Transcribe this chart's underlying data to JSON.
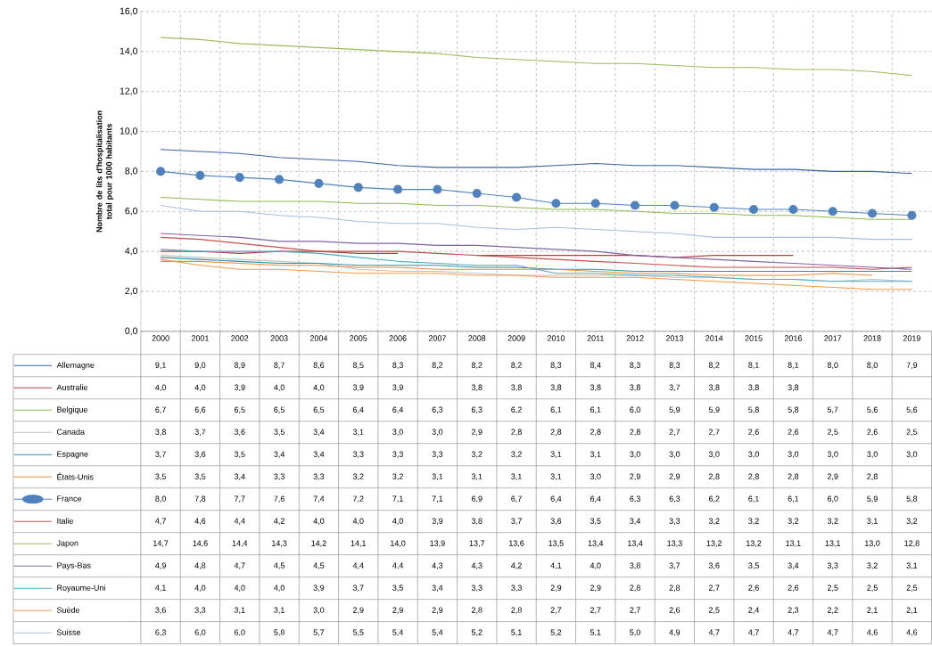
{
  "chart_data": {
    "type": "line",
    "ylabel": "Nombre  de lits d'hospitalisation total pour 1000 habitants",
    "categories": [
      "2000",
      "2001",
      "2002",
      "2003",
      "2004",
      "2005",
      "2006",
      "2007",
      "2008",
      "2009",
      "2010",
      "2011",
      "2012",
      "2013",
      "2014",
      "2015",
      "2016",
      "2017",
      "2018",
      "2019"
    ],
    "ylim": [
      0,
      16
    ],
    "yticks": [
      {
        "value": 0,
        "label": "0,0"
      },
      {
        "value": 2,
        "label": "2,0"
      },
      {
        "value": 4,
        "label": "4,0"
      },
      {
        "value": 6,
        "label": "6,0"
      },
      {
        "value": 8,
        "label": "8,0"
      },
      {
        "value": 10,
        "label": "10,0"
      },
      {
        "value": 12,
        "label": "12,0"
      },
      {
        "value": 14,
        "label": "14,0"
      },
      {
        "value": 16,
        "label": "16,0"
      }
    ],
    "grid": true,
    "legend": "bottom left",
    "line_style": "solid",
    "marker": "none",
    "series": [
      {
        "name": "Allemagne",
        "color": "#3a63a0",
        "values": [
          9.1,
          9.0,
          8.9,
          8.7,
          8.6,
          8.5,
          8.3,
          8.2,
          8.2,
          8.2,
          8.3,
          8.4,
          8.3,
          8.3,
          8.2,
          8.1,
          8.1,
          8.0,
          8.0,
          7.9
        ],
        "value_labels": [
          "9,1",
          "9,0",
          "8,9",
          "8,7",
          "8,6",
          "8,5",
          "8,3",
          "8,2",
          "8,2",
          "8,2",
          "8,3",
          "8,4",
          "8,3",
          "8,3",
          "8,2",
          "8,1",
          "8,1",
          "8,0",
          "8,0",
          "7,9"
        ]
      },
      {
        "name": "Australie",
        "color": "#b2403e",
        "values": [
          4.0,
          4.0,
          3.9,
          4.0,
          4.0,
          3.9,
          3.9,
          null,
          3.8,
          3.8,
          3.8,
          3.8,
          3.8,
          3.7,
          3.8,
          3.8,
          3.8,
          null,
          null,
          null
        ],
        "value_labels": [
          "4,0",
          "4,0",
          "3,9",
          "4,0",
          "4,0",
          "3,9",
          "3,9",
          null,
          "3,8",
          "3,8",
          "3,8",
          "3,8",
          "3,8",
          "3,7",
          "3,8",
          "3,8",
          "3,8",
          null,
          null,
          null
        ]
      },
      {
        "name": "Belgique",
        "color": "#8fb84c",
        "values": [
          6.7,
          6.6,
          6.5,
          6.5,
          6.5,
          6.4,
          6.4,
          6.3,
          6.3,
          6.2,
          6.1,
          6.1,
          6.0,
          5.9,
          5.9,
          5.8,
          5.8,
          5.7,
          5.6,
          5.6
        ],
        "value_labels": [
          "6,7",
          "6,6",
          "6,5",
          "6,5",
          "6,5",
          "6,4",
          "6,4",
          "6,3",
          "6,3",
          "6,2",
          "6,1",
          "6,1",
          "6,0",
          "5,9",
          "5,9",
          "5,8",
          "5,8",
          "5,7",
          "5,6",
          "5,6"
        ]
      },
      {
        "name": "Canada",
        "color": "#bfbfbf",
        "values": [
          3.8,
          3.7,
          3.6,
          3.5,
          3.4,
          3.1,
          3.0,
          3.0,
          2.9,
          2.8,
          2.8,
          2.8,
          2.8,
          2.7,
          2.7,
          2.6,
          2.6,
          2.5,
          2.6,
          2.5
        ],
        "value_labels": [
          "3,8",
          "3,7",
          "3,6",
          "3,5",
          "3,4",
          "3,1",
          "3,0",
          "3,0",
          "2,9",
          "2,8",
          "2,8",
          "2,8",
          "2,8",
          "2,7",
          "2,7",
          "2,6",
          "2,6",
          "2,5",
          "2,6",
          "2,5"
        ]
      },
      {
        "name": "Espagne",
        "color": "#2e8fa8",
        "values": [
          3.7,
          3.6,
          3.5,
          3.4,
          3.4,
          3.3,
          3.3,
          3.3,
          3.2,
          3.2,
          3.1,
          3.1,
          3.0,
          3.0,
          3.0,
          3.0,
          3.0,
          3.0,
          3.0,
          3.0
        ],
        "value_labels": [
          "3,7",
          "3,6",
          "3,5",
          "3,4",
          "3,4",
          "3,3",
          "3,3",
          "3,3",
          "3,2",
          "3,2",
          "3,1",
          "3,1",
          "3,0",
          "3,0",
          "3,0",
          "3,0",
          "3,0",
          "3,0",
          "3,0",
          "3,0"
        ]
      },
      {
        "name": "États-Unis",
        "color": "#ed8a38",
        "values": [
          3.5,
          3.5,
          3.4,
          3.3,
          3.3,
          3.2,
          3.2,
          3.1,
          3.1,
          3.1,
          3.1,
          3.0,
          2.9,
          2.9,
          2.8,
          2.8,
          2.8,
          2.9,
          2.8,
          null
        ],
        "value_labels": [
          "3,5",
          "3,5",
          "3,4",
          "3,3",
          "3,3",
          "3,2",
          "3,2",
          "3,1",
          "3,1",
          "3,1",
          "3,1",
          "3,0",
          "2,9",
          "2,9",
          "2,8",
          "2,8",
          "2,8",
          "2,9",
          "2,8",
          null
        ]
      },
      {
        "name": "France",
        "color": "#4f81bd",
        "marker": "circle",
        "values": [
          8.0,
          7.8,
          7.7,
          7.6,
          7.4,
          7.2,
          7.1,
          7.1,
          6.9,
          6.7,
          6.4,
          6.4,
          6.3,
          6.3,
          6.2,
          6.1,
          6.1,
          6.0,
          5.9,
          5.8
        ],
        "value_labels": [
          "8,0",
          "7,8",
          "7,7",
          "7,6",
          "7,4",
          "7,2",
          "7,1",
          "7,1",
          "6,9",
          "6,7",
          "6,4",
          "6,4",
          "6,3",
          "6,3",
          "6,2",
          "6,1",
          "6,1",
          "6,0",
          "5,9",
          "5,8"
        ]
      },
      {
        "name": "Italie",
        "color": "#c0504d",
        "values": [
          4.7,
          4.6,
          4.4,
          4.2,
          4.0,
          4.0,
          4.0,
          3.9,
          3.8,
          3.7,
          3.6,
          3.5,
          3.4,
          3.3,
          3.2,
          3.2,
          3.2,
          3.2,
          3.1,
          3.2
        ],
        "value_labels": [
          "4,7",
          "4,6",
          "4,4",
          "4,2",
          "4,0",
          "4,0",
          "4,0",
          "3,9",
          "3,8",
          "3,7",
          "3,6",
          "3,5",
          "3,4",
          "3,3",
          "3,2",
          "3,2",
          "3,2",
          "3,2",
          "3,1",
          "3,2"
        ]
      },
      {
        "name": "Japon",
        "color": "#9bbb59",
        "values": [
          14.7,
          14.6,
          14.4,
          14.3,
          14.2,
          14.1,
          14.0,
          13.9,
          13.7,
          13.6,
          13.5,
          13.4,
          13.4,
          13.3,
          13.2,
          13.2,
          13.1,
          13.1,
          13.0,
          12.8
        ],
        "value_labels": [
          "14,7",
          "14,6",
          "14,4",
          "14,3",
          "14,2",
          "14,1",
          "14,0",
          "13,9",
          "13,7",
          "13,6",
          "13,5",
          "13,4",
          "13,4",
          "13,3",
          "13,2",
          "13,2",
          "13,1",
          "13,1",
          "13,0",
          "12,8"
        ]
      },
      {
        "name": "Pays-Bas",
        "color": "#8064a2",
        "values": [
          4.9,
          4.8,
          4.7,
          4.5,
          4.5,
          4.4,
          4.4,
          4.3,
          4.3,
          4.2,
          4.1,
          4.0,
          3.8,
          3.7,
          3.6,
          3.5,
          3.4,
          3.3,
          3.2,
          3.1
        ],
        "value_labels": [
          "4,9",
          "4,8",
          "4,7",
          "4,5",
          "4,5",
          "4,4",
          "4,4",
          "4,3",
          "4,3",
          "4,2",
          "4,1",
          "4,0",
          "3,8",
          "3,7",
          "3,6",
          "3,5",
          "3,4",
          "3,3",
          "3,2",
          "3,1"
        ]
      },
      {
        "name": "Royaume-Uni",
        "color": "#4bacc6",
        "values": [
          4.1,
          4.0,
          4.0,
          4.0,
          3.9,
          3.7,
          3.5,
          3.4,
          3.3,
          3.3,
          2.9,
          2.9,
          2.8,
          2.8,
          2.7,
          2.6,
          2.6,
          2.5,
          2.5,
          2.5
        ],
        "value_labels": [
          "4,1",
          "4,0",
          "4,0",
          "4,0",
          "3,9",
          "3,7",
          "3,5",
          "3,4",
          "3,3",
          "3,3",
          "2,9",
          "2,9",
          "2,8",
          "2,8",
          "2,7",
          "2,6",
          "2,6",
          "2,5",
          "2,5",
          "2,5"
        ]
      },
      {
        "name": "Suède",
        "color": "#f79646",
        "values": [
          3.6,
          3.3,
          3.1,
          3.1,
          3.0,
          2.9,
          2.9,
          2.9,
          2.8,
          2.8,
          2.7,
          2.7,
          2.7,
          2.6,
          2.5,
          2.4,
          2.3,
          2.2,
          2.1,
          2.1
        ],
        "value_labels": [
          "3,6",
          "3,3",
          "3,1",
          "3,1",
          "3,0",
          "2,9",
          "2,9",
          "2,9",
          "2,8",
          "2,8",
          "2,7",
          "2,7",
          "2,7",
          "2,6",
          "2,5",
          "2,4",
          "2,3",
          "2,2",
          "2,1",
          "2,1"
        ]
      },
      {
        "name": "Suisse",
        "color": "#a8bde0",
        "values": [
          6.3,
          6.0,
          6.0,
          5.8,
          5.7,
          5.5,
          5.4,
          5.4,
          5.2,
          5.1,
          5.2,
          5.1,
          5.0,
          4.9,
          4.7,
          4.7,
          4.7,
          4.7,
          4.6,
          4.6
        ],
        "value_labels": [
          "6,3",
          "6,0",
          "6,0",
          "5,8",
          "5,7",
          "5,5",
          "5,4",
          "5,4",
          "5,2",
          "5,1",
          "5,2",
          "5,1",
          "5,0",
          "4,9",
          "4,7",
          "4,7",
          "4,7",
          "4,7",
          "4,6",
          "4,6"
        ]
      }
    ]
  }
}
